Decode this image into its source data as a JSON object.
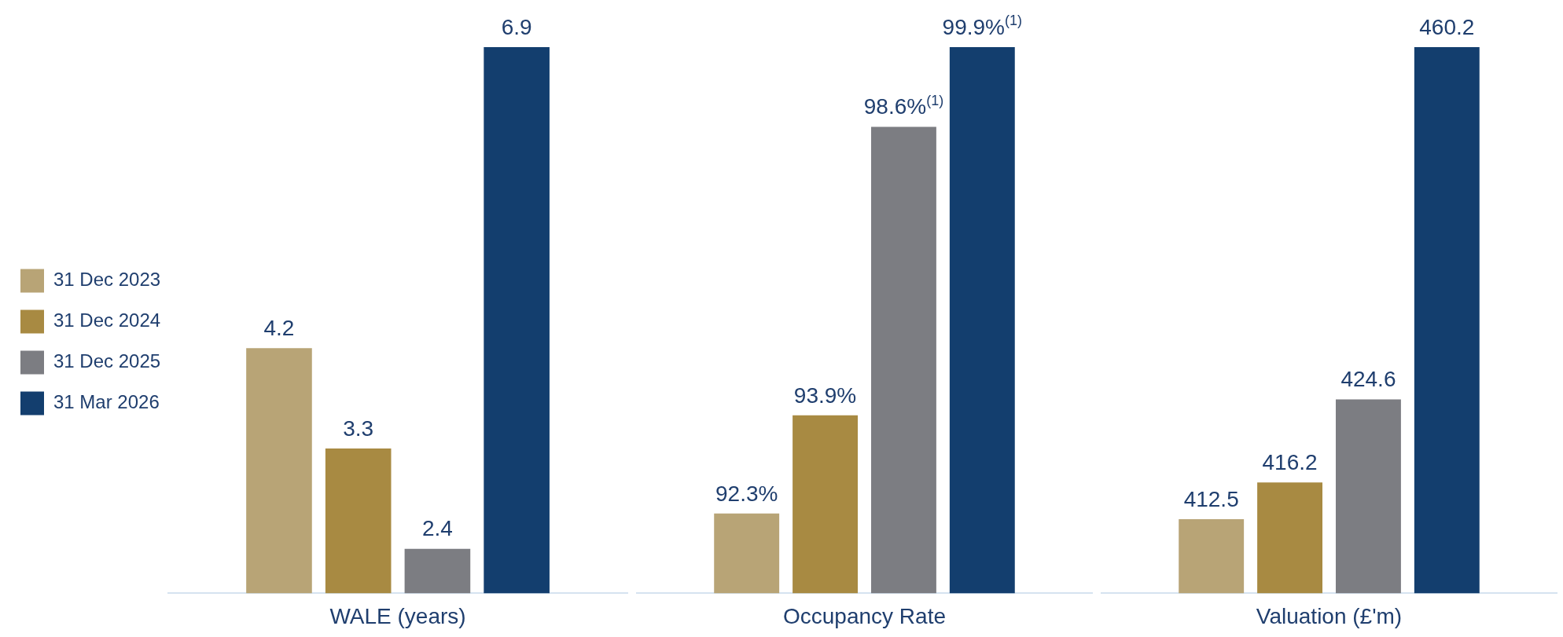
{
  "chart_data": [
    {
      "type": "bar",
      "xlabel": "WALE (years)",
      "categories": [
        null
      ],
      "ylim": [
        2,
        6.9
      ],
      "tick_labels": false,
      "grid": false,
      "legend": "left",
      "data_labels": true,
      "series": [
        {
          "name": "31 Dec 2023",
          "color": "#b8a476",
          "values": [
            4.2
          ]
        },
        {
          "name": "31 Dec 2024",
          "color": "#a88a42",
          "values": [
            3.3
          ]
        },
        {
          "name": "31 Dec 2025",
          "color": "#7c7d82",
          "values": [
            2.4
          ]
        },
        {
          "name": "31 Mar 2026",
          "color": "#133e6e",
          "values": [
            6.9
          ]
        }
      ]
    },
    {
      "type": "bar",
      "xlabel": "Occupancy Rate",
      "categories": [
        null
      ],
      "ylim": [
        91,
        99.9
      ],
      "tick_labels": false,
      "grid": false,
      "legend": false,
      "series": [
        {
          "color": "#b8a476",
          "values": [
            92.3
          ],
          "value_labels": [
            "92.3%"
          ]
        },
        {
          "color": "#a88a42",
          "values": [
            93.9
          ],
          "value_labels": [
            "93.9%"
          ]
        },
        {
          "color": "#7c7d82",
          "values": [
            98.6
          ],
          "value_labels": [
            "98.6%$^{(1)}$"
          ]
        },
        {
          "color": "#133e6e",
          "values": [
            99.9
          ],
          "value_labels": [
            "99.9%$^{(1)}$"
          ]
        }
      ]
    },
    {
      "type": "bar",
      "xlabel": "Valuation (£'m)",
      "categories": [
        null
      ],
      "ylim": [
        405,
        460.2
      ],
      "tick_labels": false,
      "grid": false,
      "legend": false,
      "data_labels": true,
      "series": [
        {
          "color": "#b8a476",
          "values": [
            412.5
          ]
        },
        {
          "color": "#a88a42",
          "values": [
            416.2
          ]
        },
        {
          "color": "#7c7d82",
          "values": [
            424.6
          ]
        },
        {
          "color": "#133e6e",
          "values": [
            460.2
          ]
        }
      ]
    }
  ]
}
